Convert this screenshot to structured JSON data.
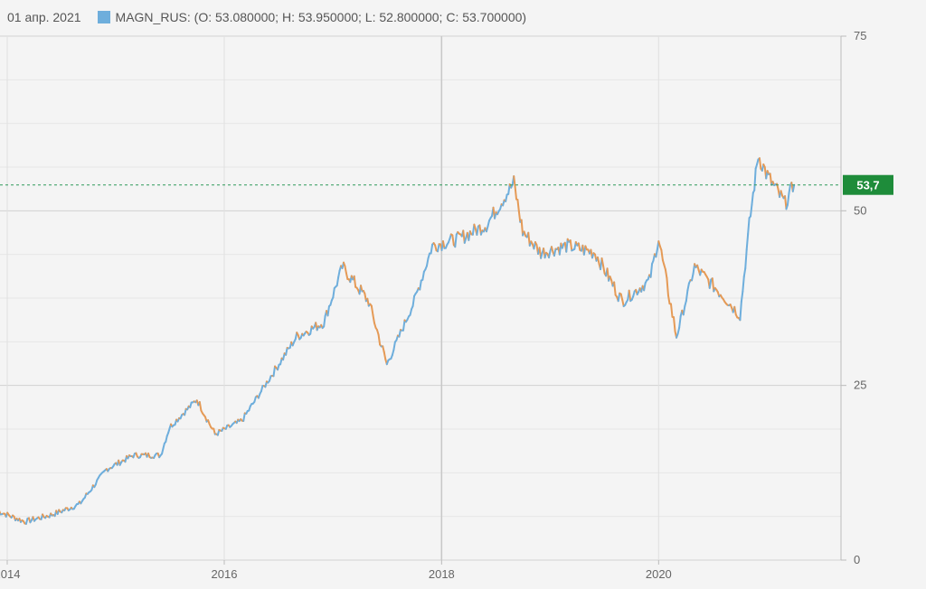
{
  "header": {
    "date": "01 апр. 2021",
    "legend_text": "MAGN_RUS: (O: 53.080000; H: 53.950000; L: 52.800000; C: 53.700000)"
  },
  "colors": {
    "series_up": "#6eaedc",
    "series_down": "#e59a56",
    "last_price_bg": "#1e8c3a",
    "grid": "#dcdcdc",
    "current_line": "#2e9a5a"
  },
  "chart_data": {
    "type": "line",
    "series": [
      {
        "name": "MAGN_RUS",
        "x": [
          "2013-12",
          "2014-03",
          "2014-06",
          "2014-09",
          "2014-12",
          "2015-03",
          "2015-06",
          "2015-07",
          "2015-10",
          "2015-12",
          "2016-03",
          "2016-06",
          "2016-09",
          "2016-12",
          "2017-02",
          "2017-05",
          "2017-07",
          "2017-10",
          "2017-12",
          "2018-03",
          "2018-06",
          "2018-09",
          "2018-10",
          "2018-12",
          "2019-03",
          "2019-06",
          "2019-09",
          "2019-12",
          "2020-01",
          "2020-03",
          "2020-05",
          "2020-08",
          "2020-10",
          "2020-11",
          "2020-12",
          "2021-01",
          "2021-03",
          "2021-04"
        ],
        "values": [
          7,
          5.5,
          6.5,
          8,
          13,
          15,
          15,
          19,
          23,
          18,
          20,
          26,
          32,
          34,
          42,
          37,
          28,
          37,
          45,
          46,
          48,
          54,
          47,
          44,
          45,
          44,
          37,
          40,
          46,
          32,
          42,
          38,
          35,
          48,
          58,
          55,
          51,
          53.7
        ]
      }
    ],
    "x_ticks": [
      "2014",
      "2016",
      "2018",
      "2020"
    ],
    "y_ticks": [
      0,
      25,
      50,
      75
    ],
    "ylim": [
      0,
      75
    ],
    "last_value": 53.7,
    "last_value_label": "53,7",
    "grid": true,
    "y_axis_position": "right"
  }
}
